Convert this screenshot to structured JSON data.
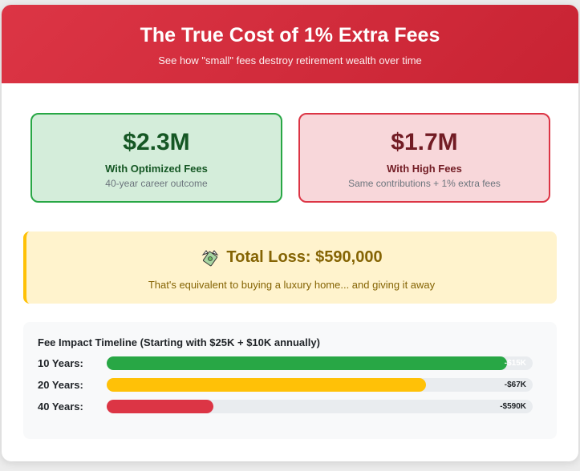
{
  "header": {
    "title": "The True Cost of 1% Extra Fees",
    "subtitle": "See how \"small\" fees destroy retirement wealth over time"
  },
  "comparison": {
    "optimized": {
      "amount": "$2.3M",
      "label": "With Optimized Fees",
      "note": "40-year career outcome"
    },
    "high": {
      "amount": "$1.7M",
      "label": "With High Fees",
      "note": "Same contributions + 1% extra fees"
    }
  },
  "loss": {
    "icon": "money-with-wings-icon",
    "title": "Total Loss: $590,000",
    "description": "That's equivalent to buying a luxury home... and giving it away"
  },
  "timeline": {
    "title": "Fee Impact Timeline (Starting with $25K + $10K annually)",
    "rows": [
      {
        "label": "10 Years:",
        "value": "-$15K",
        "bar_fraction": 0.94,
        "color": "#28a745"
      },
      {
        "label": "20 Years:",
        "value": "-$67K",
        "bar_fraction": 0.75,
        "color": "#ffc107"
      },
      {
        "label": "40 Years:",
        "value": "-$590K",
        "bar_fraction": 0.25,
        "color": "#dc3545"
      }
    ]
  },
  "colors": {
    "header": "#dc3545",
    "good": "#28a745",
    "bad": "#dc3545",
    "warning": "#ffc107"
  }
}
